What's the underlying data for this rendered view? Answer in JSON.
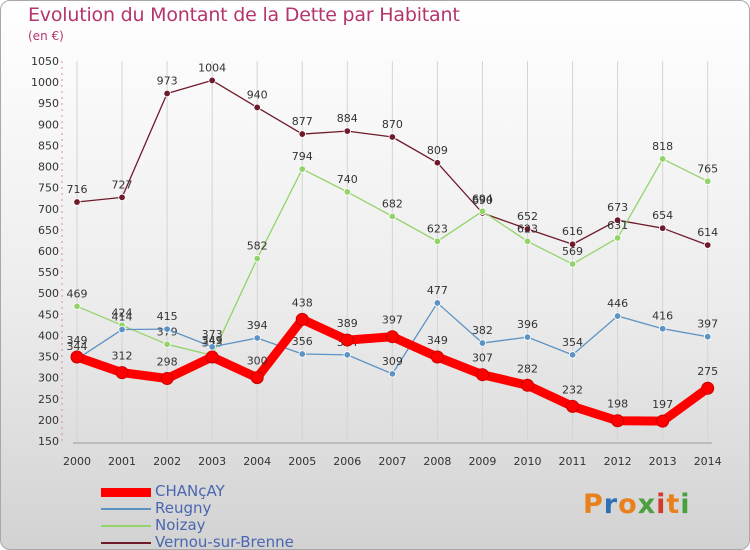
{
  "title": "Evolution du Montant de la Dette par Habitant",
  "subtitle": "(en €)",
  "chart_data": {
    "type": "line",
    "title": "Evolution du Montant de la Dette par Habitant",
    "subtitle": "(en €)",
    "x": [
      "2000",
      "2001",
      "2002",
      "2003",
      "2004",
      "2005",
      "2006",
      "2007",
      "2008",
      "2009",
      "2010",
      "2011",
      "2012",
      "2013",
      "2014"
    ],
    "ylim": [
      150,
      1050
    ],
    "yticks": [
      150,
      200,
      250,
      300,
      350,
      400,
      450,
      500,
      550,
      600,
      650,
      700,
      750,
      800,
      850,
      900,
      950,
      1000,
      1050
    ],
    "grid": "vertical",
    "legend_position": "bottom-left",
    "series": [
      {
        "name": "Vernou-sur-Brenne",
        "color": "#6e1a2a",
        "values": [
          716,
          727,
          973,
          1004,
          940,
          877,
          884,
          870,
          809,
          690,
          652,
          616,
          673,
          654,
          614
        ]
      },
      {
        "name": "Noizay",
        "color": "#93d46a",
        "values": [
          469,
          424,
          379,
          353,
          582,
          794,
          740,
          682,
          623,
          694,
          623,
          569,
          631,
          818,
          765
        ]
      },
      {
        "name": "Reugny",
        "color": "#5d93c4",
        "values": [
          344,
          414,
          415,
          373,
          394,
          356,
          354,
          309,
          477,
          382,
          396,
          354,
          446,
          416,
          397
        ]
      },
      {
        "name": "CHANçAY",
        "color": "#ff0000",
        "values": [
          349,
          312,
          298,
          349,
          300,
          438,
          389,
          397,
          349,
          307,
          282,
          232,
          198,
          197,
          275
        ]
      }
    ]
  },
  "legend": [
    {
      "label": "CHANçAY",
      "color": "#ff0000"
    },
    {
      "label": "Reugny",
      "color": "#5d93c4"
    },
    {
      "label": "Noizay",
      "color": "#93d46a"
    },
    {
      "label": "Vernou-sur-Brenne",
      "color": "#6e1a2a"
    }
  ],
  "logo": {
    "text": "Proxiti",
    "colors": [
      "#e8801e",
      "#2f6fb5",
      "#e8801e",
      "#4aa03f",
      "#d23a2a",
      "#e8801e",
      "#4aa03f"
    ]
  }
}
